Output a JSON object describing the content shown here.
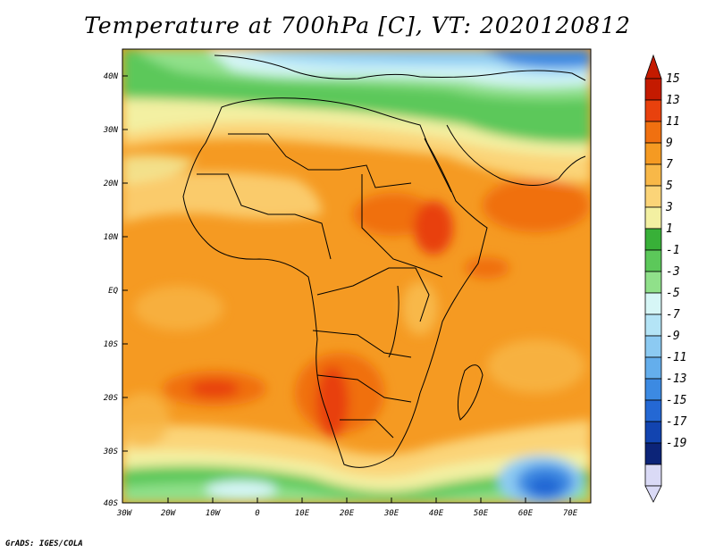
{
  "title": "Temperature at 700hPa [C], VT: 2020120812",
  "credit": "GrADS: IGES/COLA",
  "map": {
    "lat_labels": [
      "40N",
      "30N",
      "20N",
      "10N",
      "EQ",
      "10S",
      "20S",
      "30S",
      "40S"
    ],
    "lon_labels": [
      "30W",
      "20W",
      "10W",
      "0",
      "10E",
      "20E",
      "30E",
      "40E",
      "50E",
      "60E",
      "70E"
    ]
  },
  "colorbar": {
    "labels": [
      "15",
      "13",
      "11",
      "9",
      "7",
      "5",
      "3",
      "1",
      "-1",
      "-3",
      "-5",
      "-7",
      "-9",
      "-11",
      "-13",
      "-15",
      "-17",
      "-19"
    ],
    "colors": [
      "#c41a00",
      "#e8410d",
      "#f07010",
      "#f59a22",
      "#f8b848",
      "#fbd478",
      "#f3f0a2",
      "#38b038",
      "#5cc85a",
      "#90e08a",
      "#d6f6f6",
      "#b4e4f6",
      "#8ccaf2",
      "#64aeec",
      "#3c8ae2",
      "#2468d4",
      "#1244b0",
      "#0c2478",
      "#dadaf6"
    ]
  }
}
